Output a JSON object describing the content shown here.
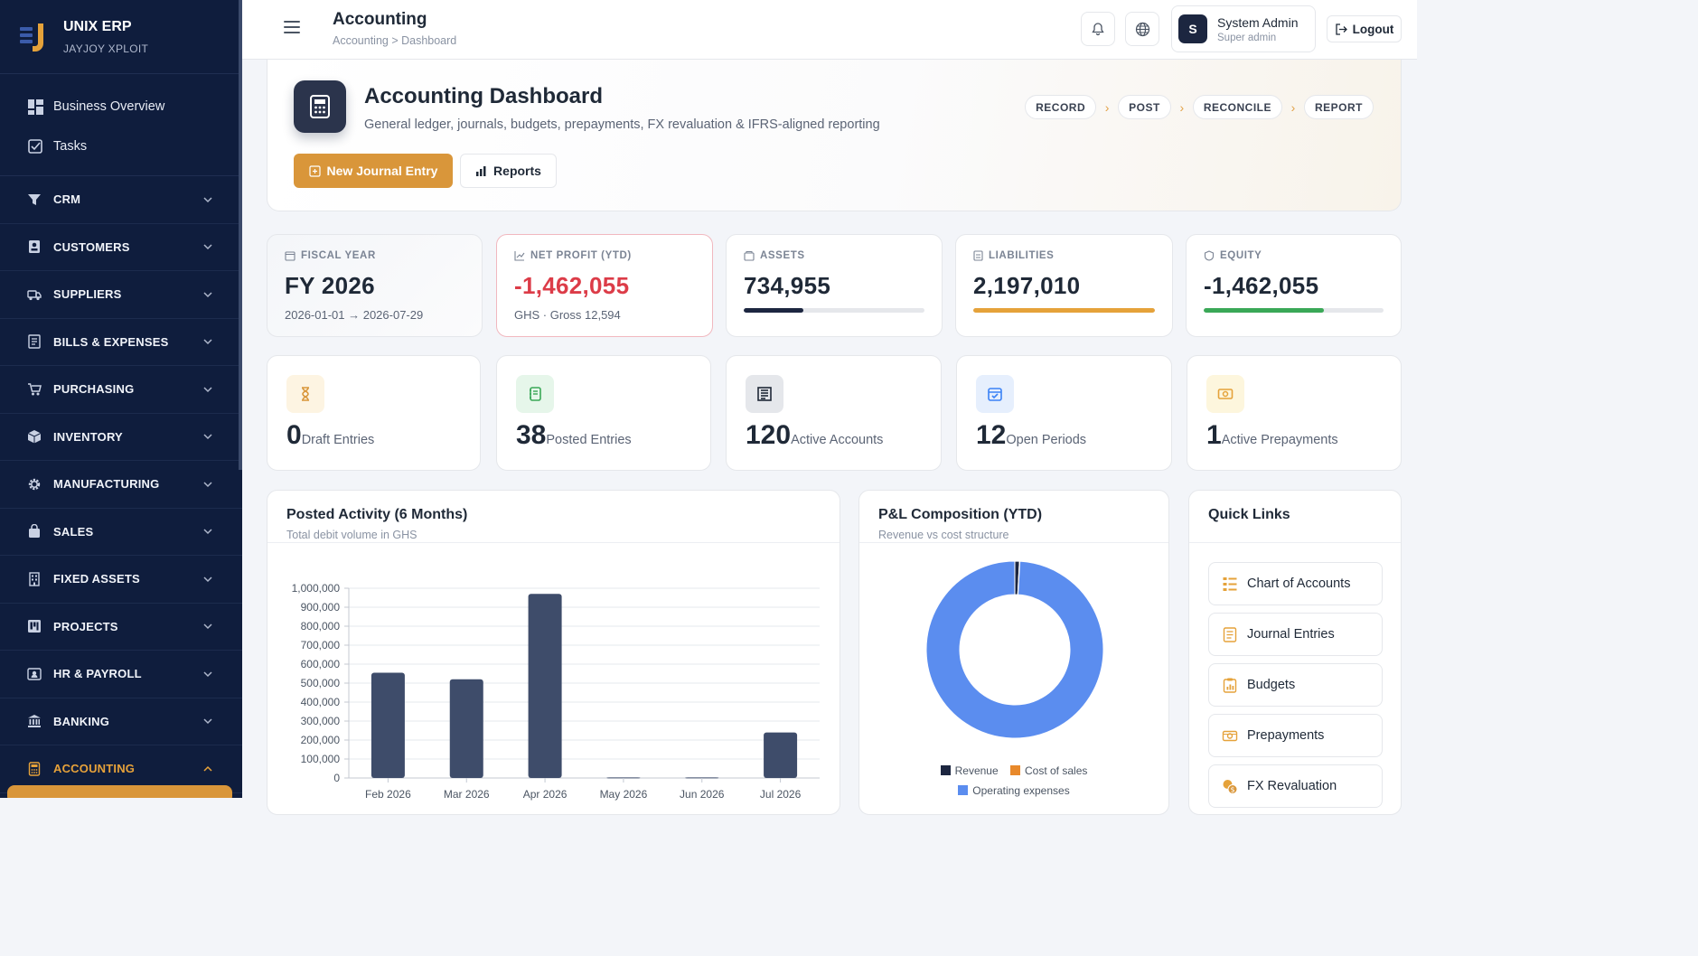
{
  "brand": {
    "name": "UNIX ERP",
    "subtitle": "JAYJOY XPLOIT"
  },
  "sidebar": {
    "top_items": [
      {
        "label": "Business Overview",
        "icon": "dashboard-icon"
      },
      {
        "label": "Tasks",
        "icon": "checkbox-icon"
      }
    ],
    "groups": [
      {
        "label": "CRM",
        "icon": "filter-icon"
      },
      {
        "label": "CUSTOMERS",
        "icon": "contact-card-icon"
      },
      {
        "label": "SUPPLIERS",
        "icon": "truck-icon"
      },
      {
        "label": "BILLS & EXPENSES",
        "icon": "receipt-icon"
      },
      {
        "label": "PURCHASING",
        "icon": "cart-icon"
      },
      {
        "label": "INVENTORY",
        "icon": "box-icon"
      },
      {
        "label": "MANUFACTURING",
        "icon": "gear-icon"
      },
      {
        "label": "SALES",
        "icon": "bag-icon"
      },
      {
        "label": "FIXED ASSETS",
        "icon": "building-icon"
      },
      {
        "label": "PROJECTS",
        "icon": "kanban-icon"
      },
      {
        "label": "HR & PAYROLL",
        "icon": "id-badge-icon"
      },
      {
        "label": "BANKING",
        "icon": "bank-icon"
      },
      {
        "label": "ACCOUNTING",
        "icon": "calculator-icon",
        "active": true
      }
    ]
  },
  "topbar": {
    "title": "Accounting",
    "breadcrumb": "Accounting > Dashboard",
    "user_initial": "S",
    "user_name": "System Admin",
    "user_role": "Super admin",
    "logout_label": "Logout"
  },
  "hero": {
    "title": "Accounting Dashboard",
    "subtitle": "General ledger, journals, budgets, prepayments, FX revaluation & IFRS-aligned reporting",
    "primary_button": "New Journal Entry",
    "secondary_button": "Reports",
    "steps": [
      "RECORD",
      "POST",
      "RECONCILE",
      "REPORT"
    ]
  },
  "kpis": [
    {
      "label": "FISCAL YEAR",
      "value": "FY 2026",
      "sub": "2026-01-01 → 2026-07-29"
    },
    {
      "label": "NET PROFIT (YTD)",
      "value": "-1,462,055",
      "sub": "GHS · Gross 12,594"
    },
    {
      "label": "ASSETS",
      "value": "734,955",
      "progress": 0.33,
      "color": "#1c2640"
    },
    {
      "label": "LIABILITIES",
      "value": "2,197,010",
      "progress": 1.0,
      "color": "#e5a23a"
    },
    {
      "label": "EQUITY",
      "value": "-1,462,055",
      "progress": 0.67,
      "color": "#3aa857"
    }
  ],
  "stats": [
    {
      "value": "0",
      "label": "Draft Entries",
      "icon": "hourglass-icon",
      "color": "#d9963a",
      "bg": "#fdf4e2"
    },
    {
      "value": "38",
      "label": "Posted Entries",
      "icon": "notebook-icon",
      "color": "#3aa857",
      "bg": "#e6f6ea"
    },
    {
      "value": "120",
      "label": "Active Accounts",
      "icon": "ledger-icon",
      "color": "#1f2937",
      "bg": "#e5e7eb"
    },
    {
      "value": "12",
      "label": "Open Periods",
      "icon": "calendar-check-icon",
      "color": "#3b82f6",
      "bg": "#e6effd"
    },
    {
      "value": "1",
      "label": "Active Prepayments",
      "icon": "cash-icon",
      "color": "#e5a23a",
      "bg": "#fdf6dd"
    }
  ],
  "activity_panel": {
    "title": "Posted Activity (6 Months)",
    "subtitle": "Total debit volume in GHS"
  },
  "pl_panel": {
    "title": "P&L Composition (YTD)",
    "subtitle": "Revenue vs cost structure"
  },
  "quick_links": {
    "title": "Quick Links",
    "items": [
      {
        "label": "Chart of Accounts",
        "icon": "chart-of-accounts-icon"
      },
      {
        "label": "Journal Entries",
        "icon": "journal-icon"
      },
      {
        "label": "Budgets",
        "icon": "clipboard-chart-icon"
      },
      {
        "label": "Prepayments",
        "icon": "cash-icon"
      },
      {
        "label": "FX Revaluation",
        "icon": "currency-exchange-icon"
      }
    ]
  },
  "chart_data": [
    {
      "type": "bar",
      "categories": [
        "Feb 2026",
        "Mar 2026",
        "Apr 2026",
        "May 2026",
        "Jun 2026",
        "Jul 2026"
      ],
      "values": [
        555000,
        520000,
        970000,
        3000,
        3000,
        240000
      ],
      "ylim": [
        0,
        1000000
      ],
      "yticks": [
        "0",
        "100,000",
        "200,000",
        "300,000",
        "400,000",
        "500,000",
        "600,000",
        "700,000",
        "800,000",
        "900,000",
        "1,000,000"
      ],
      "grid": true,
      "color": "#3e4c6a"
    },
    {
      "type": "pie",
      "donut": true,
      "labels": [
        "Revenue",
        "Cost of sales",
        "Operating expenses"
      ],
      "values": [
        12594,
        1000,
        1475649
      ],
      "colors": [
        "#1c2640",
        "#e8892b",
        "#5b8def"
      ],
      "legend_position": "bottom"
    }
  ]
}
